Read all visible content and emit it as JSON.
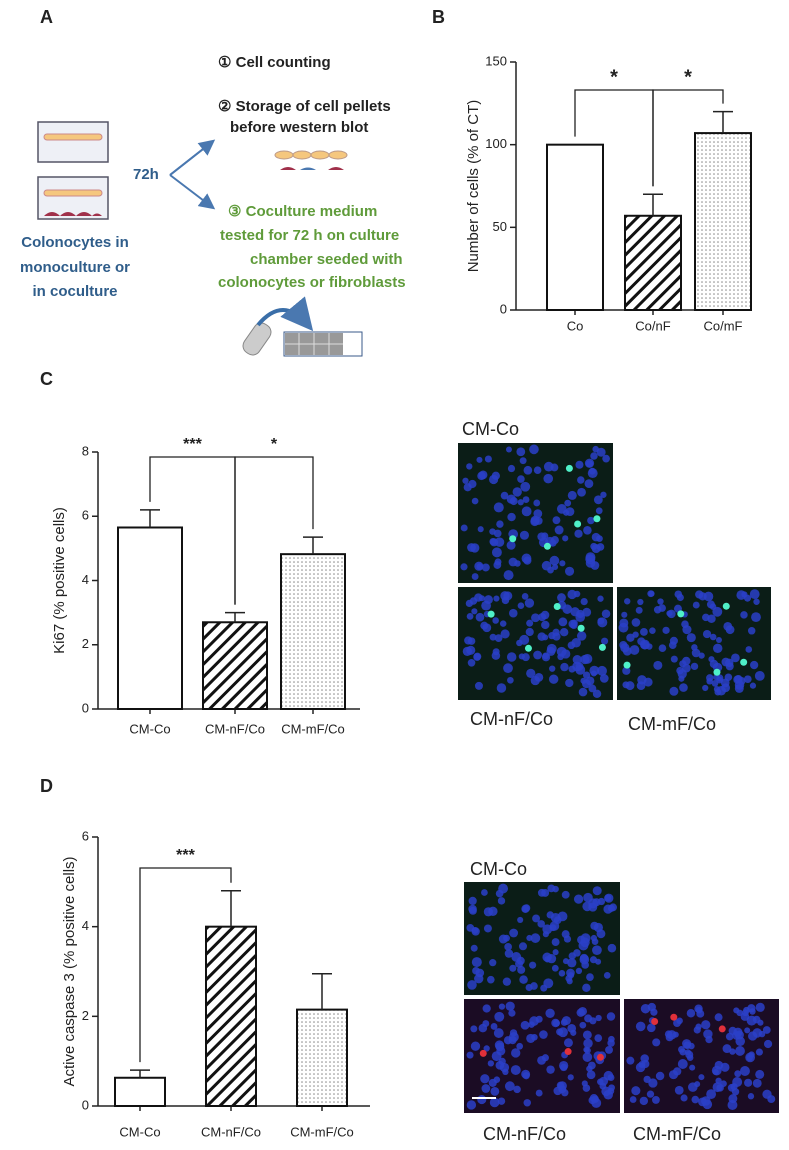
{
  "panel_labels": [
    "A",
    "B",
    "C",
    "D"
  ],
  "diagram": {
    "source_label": [
      "Colonocytes in",
      "monoculture or",
      "in coculture"
    ],
    "time": "72h",
    "steps": [
      [
        "① Cell counting"
      ],
      [
        "② Storage of cell pellets",
        "before  western blot"
      ],
      [
        "③ Coculture medium",
        "tested for 72 h on culture",
        "chamber seeded with",
        "colonocytes or fibroblasts"
      ]
    ]
  },
  "chart_data": [
    {
      "type": "bar",
      "y_label": "Number of cells (% of CT)",
      "categories": [
        "Co",
        "Co/nF",
        "Co/mF"
      ],
      "values": [
        100,
        57,
        107
      ],
      "errors": [
        null,
        13,
        13
      ],
      "fills": [
        "white",
        "hatch",
        "dots"
      ],
      "ylim": [
        0,
        150
      ],
      "yticks": [
        0,
        50,
        100,
        150
      ],
      "annotations": [
        {
          "from": 0,
          "to": 1,
          "label": "*"
        },
        {
          "from": 1,
          "to": 2,
          "label": "*"
        }
      ]
    },
    {
      "type": "bar",
      "y_label": "Ki67 (% positive cells)",
      "categories": [
        "CM-Co",
        "CM-nF/Co",
        "CM-mF/Co"
      ],
      "values": [
        5.65,
        2.7,
        4.82
      ],
      "errors": [
        0.55,
        0.3,
        0.53
      ],
      "fills": [
        "white",
        "hatch",
        "dots"
      ],
      "ylim": [
        0,
        8
      ],
      "yticks": [
        0,
        2,
        4,
        6,
        8
      ],
      "annotations": [
        {
          "from": 0,
          "to": 1,
          "label": "***"
        },
        {
          "from": 1,
          "to": 2,
          "label": "*"
        }
      ]
    },
    {
      "type": "bar",
      "y_label": "Active caspase 3 (% positive cells)",
      "categories": [
        "CM-Co",
        "CM-nF/Co",
        "CM-mF/Co"
      ],
      "values": [
        0.63,
        4.0,
        2.15
      ],
      "errors": [
        0.17,
        0.8,
        0.8
      ],
      "fills": [
        "white",
        "hatch",
        "dots"
      ],
      "ylim": [
        0,
        6
      ],
      "yticks": [
        0,
        2,
        4,
        6
      ],
      "annotations": [
        {
          "from": 0,
          "to": 1,
          "label": "***"
        }
      ]
    }
  ],
  "micrographs": [
    {
      "labels": [
        "CM-Co",
        "CM-nF/Co",
        "CM-mF/Co"
      ]
    },
    {
      "labels": [
        "CM-Co",
        "CM-nF/Co",
        "CM-mF/Co"
      ]
    }
  ]
}
